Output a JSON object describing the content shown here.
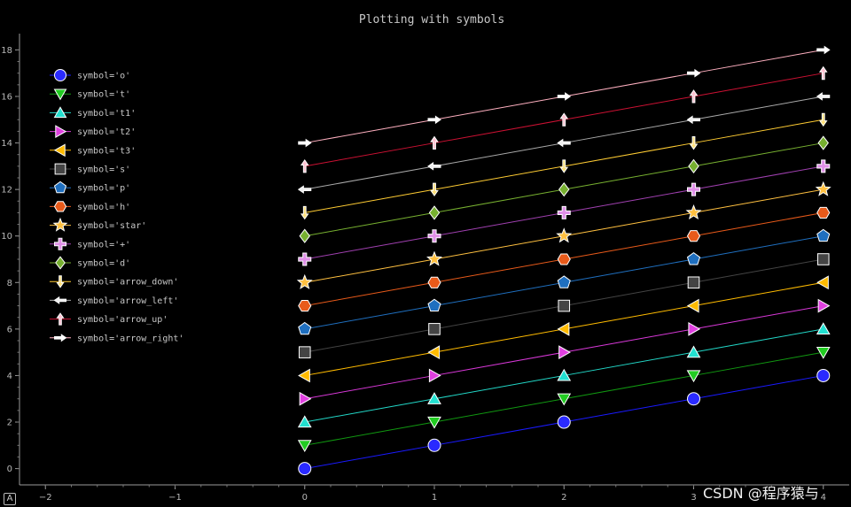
{
  "chart_data": {
    "type": "line",
    "title": "Plotting with symbols",
    "xlabel": "",
    "ylabel": "",
    "xlim": [
      -2.2,
      4.2
    ],
    "ylim": [
      -0.7,
      18.7
    ],
    "x_ticks": [
      -2,
      -1,
      0,
      1,
      2,
      3,
      4
    ],
    "y_ticks": [
      0,
      2,
      4,
      6,
      8,
      10,
      12,
      14,
      16,
      18
    ],
    "legend_position": "top-left",
    "x": [
      0,
      1,
      2,
      3,
      4
    ],
    "series": [
      {
        "name": "symbol='o'",
        "symbol": "o",
        "offset": 0,
        "color": "#2a2aff",
        "line_color": "#1a1aff",
        "values": [
          0,
          1,
          2,
          3,
          4
        ]
      },
      {
        "name": "symbol='t'",
        "symbol": "t",
        "offset": 1,
        "color": "#22cc22",
        "line_color": "#119911",
        "values": [
          1,
          2,
          3,
          4,
          5
        ]
      },
      {
        "name": "symbol='t1'",
        "symbol": "t1",
        "offset": 2,
        "color": "#22e0d0",
        "line_color": "#22d8c8",
        "values": [
          2,
          3,
          4,
          5,
          6
        ]
      },
      {
        "name": "symbol='t2'",
        "symbol": "t2",
        "offset": 3,
        "color": "#e040e0",
        "line_color": "#d838d8",
        "values": [
          3,
          4,
          5,
          6,
          7
        ]
      },
      {
        "name": "symbol='t3'",
        "symbol": "t3",
        "offset": 4,
        "color": "#ffbb00",
        "line_color": "#ffbb00",
        "values": [
          4,
          5,
          6,
          7,
          8
        ]
      },
      {
        "name": "symbol='s'",
        "symbol": "s",
        "offset": 5,
        "color": "#444444",
        "line_color": "#444444",
        "values": [
          5,
          6,
          7,
          8,
          9
        ]
      },
      {
        "name": "symbol='p'",
        "symbol": "p",
        "offset": 6,
        "color": "#1f6fbf",
        "line_color": "#1f6fbf",
        "values": [
          6,
          7,
          8,
          9,
          10
        ]
      },
      {
        "name": "symbol='h'",
        "symbol": "h",
        "offset": 7,
        "color": "#e85a1a",
        "line_color": "#e85a1a",
        "values": [
          7,
          8,
          9,
          10,
          11
        ]
      },
      {
        "name": "symbol='star'",
        "symbol": "star",
        "offset": 8,
        "color": "#ffc040",
        "line_color": "#ffc040",
        "values": [
          8,
          9,
          10,
          11,
          12
        ]
      },
      {
        "name": "symbol='+'",
        "symbol": "+",
        "offset": 9,
        "color": "#e090e8",
        "line_color": "#a040b0",
        "values": [
          9,
          10,
          11,
          12,
          13
        ]
      },
      {
        "name": "symbol='d'",
        "symbol": "d",
        "offset": 10,
        "color": "#77b030",
        "line_color": "#77b030",
        "values": [
          10,
          11,
          12,
          13,
          14
        ]
      },
      {
        "name": "symbol='arrow_down'",
        "symbol": "arrow_down",
        "offset": 11,
        "color": "#ffe07a",
        "line_color": "#ffcc33",
        "values": [
          11,
          12,
          13,
          14,
          15
        ]
      },
      {
        "name": "symbol='arrow_left'",
        "symbol": "arrow_left",
        "offset": 12,
        "color": "#eeeeee",
        "line_color": "#aaaaaa",
        "values": [
          12,
          13,
          14,
          15,
          16
        ]
      },
      {
        "name": "symbol='arrow_up'",
        "symbol": "arrow_up",
        "offset": 13,
        "color": "#ffc0d0",
        "line_color": "#cc1133",
        "values": [
          13,
          14,
          15,
          16,
          17
        ]
      },
      {
        "name": "symbol='arrow_right'",
        "symbol": "arrow_right",
        "offset": 14,
        "color": "#ffffff",
        "line_color": "#ffb0c0",
        "values": [
          14,
          15,
          16,
          17,
          18
        ]
      }
    ]
  },
  "ui": {
    "corner_label": "A",
    "watermark": "CSDN @程序猿与"
  }
}
